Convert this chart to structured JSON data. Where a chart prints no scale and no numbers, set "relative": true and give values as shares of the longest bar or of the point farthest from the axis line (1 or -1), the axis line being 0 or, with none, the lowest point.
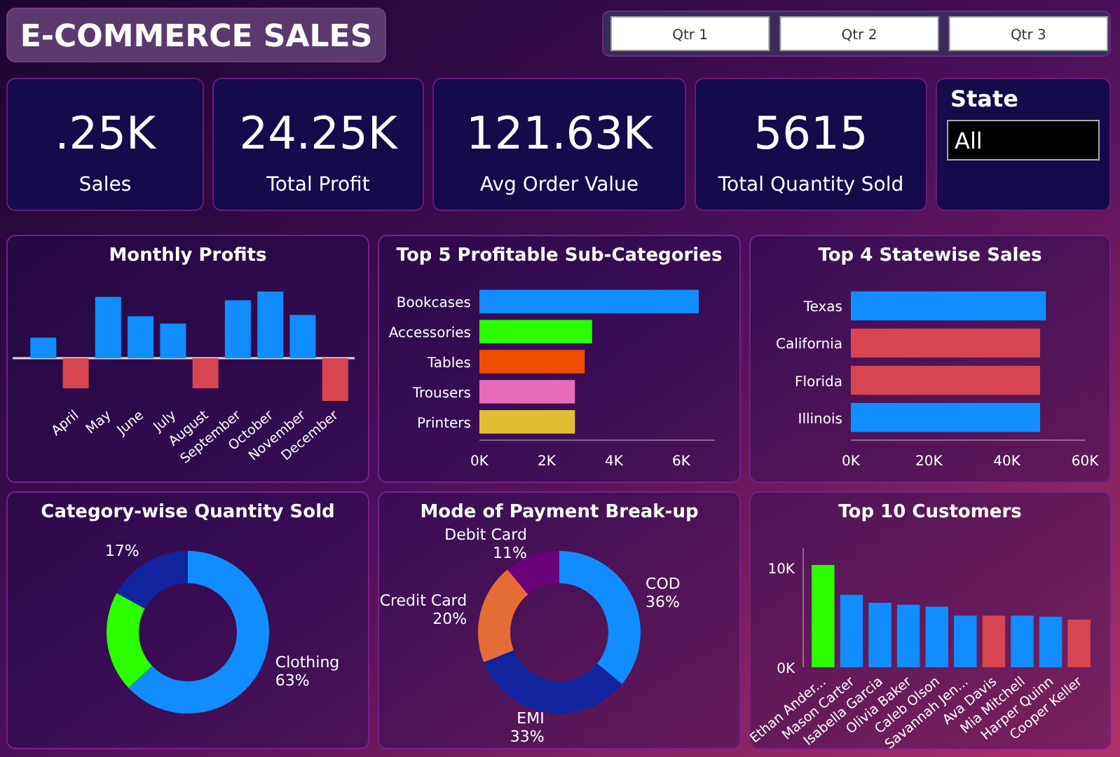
{
  "chart_data": [
    {
      "type": "other",
      "title": "E-COMMERCE SALES"
    },
    {
      "type": "other",
      "annotations": [
        "Qtr 1",
        "Qtr 2",
        "Qtr 3"
      ]
    },
    {
      "type": "other",
      "title": "Sales",
      "annotations": [
        ".25K"
      ]
    },
    {
      "type": "other",
      "title": "Total Profit",
      "annotations": [
        "24.25K"
      ]
    },
    {
      "type": "other",
      "title": "Avg Order Value",
      "annotations": [
        "121.63K"
      ]
    },
    {
      "type": "other",
      "title": "Total Quantity Sold",
      "annotations": [
        "5615"
      ]
    },
    {
      "type": "other",
      "title": "State",
      "annotations": [
        "All"
      ]
    },
    {
      "type": "bar",
      "title": "Monthly Profits",
      "relative": true,
      "tick_labels": "x",
      "categories": [
        null,
        "April",
        "May",
        "June",
        "July",
        "August",
        "September",
        "October",
        "November",
        "December"
      ],
      "values": [
        0.31,
        -0.45,
        0.92,
        0.63,
        0.52,
        -0.45,
        0.87,
        1,
        0.65,
        -0.64
      ],
      "colors": [
        "#118dff",
        "#d64550",
        "#118dff",
        "#118dff",
        "#118dff",
        "#d64550",
        "#118dff",
        "#118dff",
        "#118dff",
        "#d64550"
      ]
    },
    {
      "type": "bar",
      "orientation": "horizontal",
      "title": "Top 5 Profitable Sub-Categories",
      "categories": [
        "Bookcases",
        "Accessories",
        "Tables",
        "Trousers",
        "Printers"
      ],
      "values": [
        6520,
        3350,
        3130,
        2840,
        2840
      ],
      "colors": [
        "#118dff",
        "#2bff00",
        "#f04c00",
        "#e66cb9",
        "#e0c032"
      ],
      "xlim": [
        0,
        7000
      ],
      "xticks": [
        {
          "value": 0,
          "label": "0K"
        },
        {
          "value": 2000,
          "label": "2K"
        },
        {
          "value": 4000,
          "label": "4K"
        },
        {
          "value": 6000,
          "label": "6K"
        }
      ]
    },
    {
      "type": "bar",
      "orientation": "horizontal",
      "title": "Top 4 Statewise Sales",
      "categories": [
        "Texas",
        "California",
        "Florida",
        "Illinois"
      ],
      "values": [
        50000,
        48500,
        48500,
        48500
      ],
      "colors": [
        "#118dff",
        "#d64550",
        "#d64550",
        "#118dff"
      ],
      "xlim": [
        0,
        60000
      ],
      "xticks": [
        {
          "value": 0,
          "label": "0K"
        },
        {
          "value": 20000,
          "label": "20K"
        },
        {
          "value": 40000,
          "label": "40K"
        },
        {
          "value": 60000,
          "label": "60K"
        }
      ]
    },
    {
      "type": "donut",
      "title": "Category-wise Quantity Sold",
      "categories": [
        "Clothing",
        null,
        null
      ],
      "values": [
        63,
        20,
        17
      ],
      "colors": [
        "#118dff",
        "#2bff00",
        "#12239e"
      ],
      "value_labels": [
        "63%",
        null,
        "17%"
      ]
    },
    {
      "type": "donut",
      "title": "Mode of Payment Break-up",
      "categories": [
        "COD",
        "EMI",
        "Credit Card",
        "Debit Card"
      ],
      "values": [
        36,
        33,
        20,
        11
      ],
      "colors": [
        "#118dff",
        "#12239e",
        "#e66c37",
        "#6b007b"
      ],
      "value_labels": [
        "36%",
        "33%",
        "20%",
        "11%"
      ]
    },
    {
      "type": "bar",
      "title": "Top 10 Customers",
      "categories": [
        "Ethan Ander...",
        "Mason Carter",
        "Isabella Garcia",
        "Olivia Baker",
        "Caleb Olson",
        "Savannah Jen...",
        "Ava Davis",
        "Mia Mitchell",
        "Harper Quinn",
        "Cooper Keller"
      ],
      "values": [
        10300,
        7300,
        6500,
        6300,
        6100,
        5200,
        5200,
        5200,
        5100,
        4800
      ],
      "colors": [
        "#2bff00",
        "#118dff",
        "#118dff",
        "#118dff",
        "#118dff",
        "#118dff",
        "#d64550",
        "#118dff",
        "#118dff",
        "#d64550"
      ],
      "ylim": [
        0,
        12000
      ],
      "yticks": [
        {
          "value": 0,
          "label": "0K"
        },
        {
          "value": 10000,
          "label": "10K"
        }
      ]
    }
  ]
}
